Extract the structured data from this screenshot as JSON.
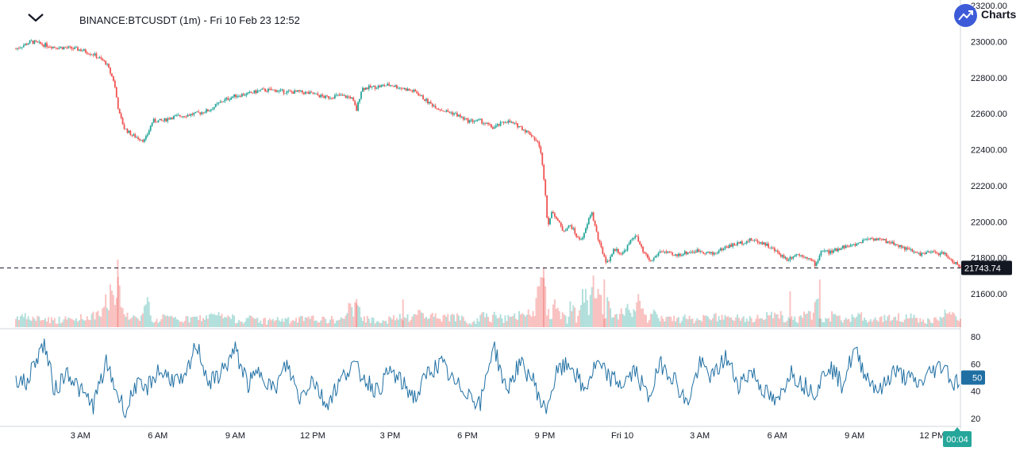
{
  "header": {
    "title": "BINANCE:BTCUSDT (1m) - Fri 10 Feb 23 12:52",
    "brand": "Charts"
  },
  "colors": {
    "up": "#26a69a",
    "down": "#ef5350",
    "rsi_line": "#1f6fa3",
    "price_tag_bg": "#131722",
    "time_tag_bg": "#26a69a"
  },
  "chart_data": [
    {
      "type": "line",
      "name": "price",
      "ylim": [
        21600,
        23200
      ],
      "y_ticks": [
        "21600.00",
        "21800.00",
        "22000.00",
        "22200.00",
        "22400.00",
        "22600.00",
        "22800.00",
        "23000.00",
        "23200.00"
      ],
      "x_ticks": [
        "3 AM",
        "6 AM",
        "9 AM",
        "12 PM",
        "3 PM",
        "6 PM",
        "9 PM",
        "Fri 10",
        "3 AM",
        "6 AM",
        "9 AM",
        "12 PM"
      ],
      "x_range_hours": [
        0,
        36.6
      ],
      "last_price": "21743.74",
      "current_time_label": "00:04",
      "points": [
        [
          0.0,
          22960
        ],
        [
          0.3,
          22980
        ],
        [
          0.6,
          23000
        ],
        [
          1.0,
          22985
        ],
        [
          1.5,
          22970
        ],
        [
          2.0,
          22965
        ],
        [
          2.5,
          22955
        ],
        [
          3.0,
          22930
        ],
        [
          3.5,
          22880
        ],
        [
          3.8,
          22780
        ],
        [
          4.0,
          22600
        ],
        [
          4.2,
          22520
        ],
        [
          4.5,
          22480
        ],
        [
          5.0,
          22450
        ],
        [
          5.3,
          22560
        ],
        [
          5.7,
          22560
        ],
        [
          6.0,
          22580
        ],
        [
          6.5,
          22590
        ],
        [
          7.0,
          22600
        ],
        [
          7.5,
          22620
        ],
        [
          8.0,
          22670
        ],
        [
          8.5,
          22700
        ],
        [
          9.0,
          22710
        ],
        [
          9.5,
          22730
        ],
        [
          10.0,
          22730
        ],
        [
          10.5,
          22720
        ],
        [
          11.0,
          22720
        ],
        [
          11.5,
          22710
        ],
        [
          12.0,
          22690
        ],
        [
          12.5,
          22700
        ],
        [
          13.0,
          22690
        ],
        [
          13.2,
          22620
        ],
        [
          13.4,
          22740
        ],
        [
          14.0,
          22750
        ],
        [
          14.5,
          22760
        ],
        [
          15.0,
          22740
        ],
        [
          15.5,
          22720
        ],
        [
          16.0,
          22660
        ],
        [
          16.5,
          22620
        ],
        [
          17.0,
          22600
        ],
        [
          17.5,
          22560
        ],
        [
          18.0,
          22560
        ],
        [
          18.5,
          22520
        ],
        [
          19.0,
          22560
        ],
        [
          19.5,
          22530
        ],
        [
          20.0,
          22480
        ],
        [
          20.3,
          22420
        ],
        [
          20.5,
          22200
        ],
        [
          20.6,
          21980
        ],
        [
          20.8,
          22060
        ],
        [
          21.2,
          21950
        ],
        [
          21.5,
          21980
        ],
        [
          21.8,
          21900
        ],
        [
          22.0,
          21920
        ],
        [
          22.3,
          22060
        ],
        [
          22.6,
          21880
        ],
        [
          22.9,
          21770
        ],
        [
          23.2,
          21850
        ],
        [
          23.5,
          21820
        ],
        [
          24.0,
          21930
        ],
        [
          24.3,
          21830
        ],
        [
          24.6,
          21780
        ],
        [
          25.0,
          21840
        ],
        [
          25.5,
          21810
        ],
        [
          26.0,
          21830
        ],
        [
          26.5,
          21840
        ],
        [
          27.0,
          21820
        ],
        [
          27.5,
          21860
        ],
        [
          28.0,
          21880
        ],
        [
          28.5,
          21900
        ],
        [
          29.0,
          21880
        ],
        [
          29.5,
          21830
        ],
        [
          29.9,
          21790
        ],
        [
          30.2,
          21820
        ],
        [
          30.6,
          21810
        ],
        [
          31.0,
          21760
        ],
        [
          31.2,
          21840
        ],
        [
          31.6,
          21830
        ],
        [
          32.0,
          21860
        ],
        [
          32.5,
          21870
        ],
        [
          33.0,
          21910
        ],
        [
          33.5,
          21900
        ],
        [
          34.0,
          21880
        ],
        [
          34.5,
          21850
        ],
        [
          35.0,
          21820
        ],
        [
          35.5,
          21830
        ],
        [
          36.0,
          21820
        ],
        [
          36.3,
          21780
        ],
        [
          36.6,
          21744
        ]
      ]
    },
    {
      "type": "line",
      "name": "RSI",
      "ylim": [
        15,
        85
      ],
      "y_ticks": [
        "20",
        "40",
        "60",
        "80"
      ],
      "last_value": "50",
      "levels": [
        [
          0,
          50
        ],
        [
          0.4,
          45
        ],
        [
          0.8,
          65
        ],
        [
          1.1,
          75
        ],
        [
          1.5,
          40
        ],
        [
          2.0,
          55
        ],
        [
          2.5,
          40
        ],
        [
          3.0,
          30
        ],
        [
          3.5,
          60
        ],
        [
          4.0,
          35
        ],
        [
          4.3,
          25
        ],
        [
          4.6,
          45
        ],
        [
          5.0,
          40
        ],
        [
          5.5,
          55
        ],
        [
          6.0,
          50
        ],
        [
          6.5,
          45
        ],
        [
          7.0,
          75
        ],
        [
          7.5,
          45
        ],
        [
          8.0,
          55
        ],
        [
          8.5,
          70
        ],
        [
          9.0,
          45
        ],
        [
          9.5,
          55
        ],
        [
          10.0,
          40
        ],
        [
          10.5,
          60
        ],
        [
          11.0,
          35
        ],
        [
          11.5,
          50
        ],
        [
          12.0,
          30
        ],
        [
          12.5,
          45
        ],
        [
          13.0,
          60
        ],
        [
          13.5,
          50
        ],
        [
          14.0,
          40
        ],
        [
          14.5,
          55
        ],
        [
          15.0,
          45
        ],
        [
          15.5,
          35
        ],
        [
          16.0,
          55
        ],
        [
          16.5,
          60
        ],
        [
          17.0,
          45
        ],
        [
          17.5,
          40
        ],
        [
          18.0,
          30
        ],
        [
          18.5,
          75
        ],
        [
          19.0,
          40
        ],
        [
          19.5,
          60
        ],
        [
          20.0,
          50
        ],
        [
          20.5,
          25
        ],
        [
          21.0,
          55
        ],
        [
          21.5,
          60
        ],
        [
          22.0,
          40
        ],
        [
          22.5,
          60
        ],
        [
          23.0,
          50
        ],
        [
          23.5,
          45
        ],
        [
          24.0,
          55
        ],
        [
          24.5,
          35
        ],
        [
          25.0,
          60
        ],
        [
          25.5,
          50
        ],
        [
          26.0,
          30
        ],
        [
          26.5,
          60
        ],
        [
          27.0,
          50
        ],
        [
          27.5,
          65
        ],
        [
          28.0,
          45
        ],
        [
          28.5,
          55
        ],
        [
          29.0,
          40
        ],
        [
          29.5,
          30
        ],
        [
          30.0,
          55
        ],
        [
          30.5,
          45
        ],
        [
          31.0,
          40
        ],
        [
          31.5,
          60
        ],
        [
          32.0,
          45
        ],
        [
          32.5,
          70
        ],
        [
          33.0,
          50
        ],
        [
          33.5,
          40
        ],
        [
          34.0,
          55
        ],
        [
          34.5,
          50
        ],
        [
          35.0,
          45
        ],
        [
          35.5,
          55
        ],
        [
          36.0,
          60
        ],
        [
          36.3,
          45
        ],
        [
          36.6,
          50
        ]
      ]
    }
  ]
}
